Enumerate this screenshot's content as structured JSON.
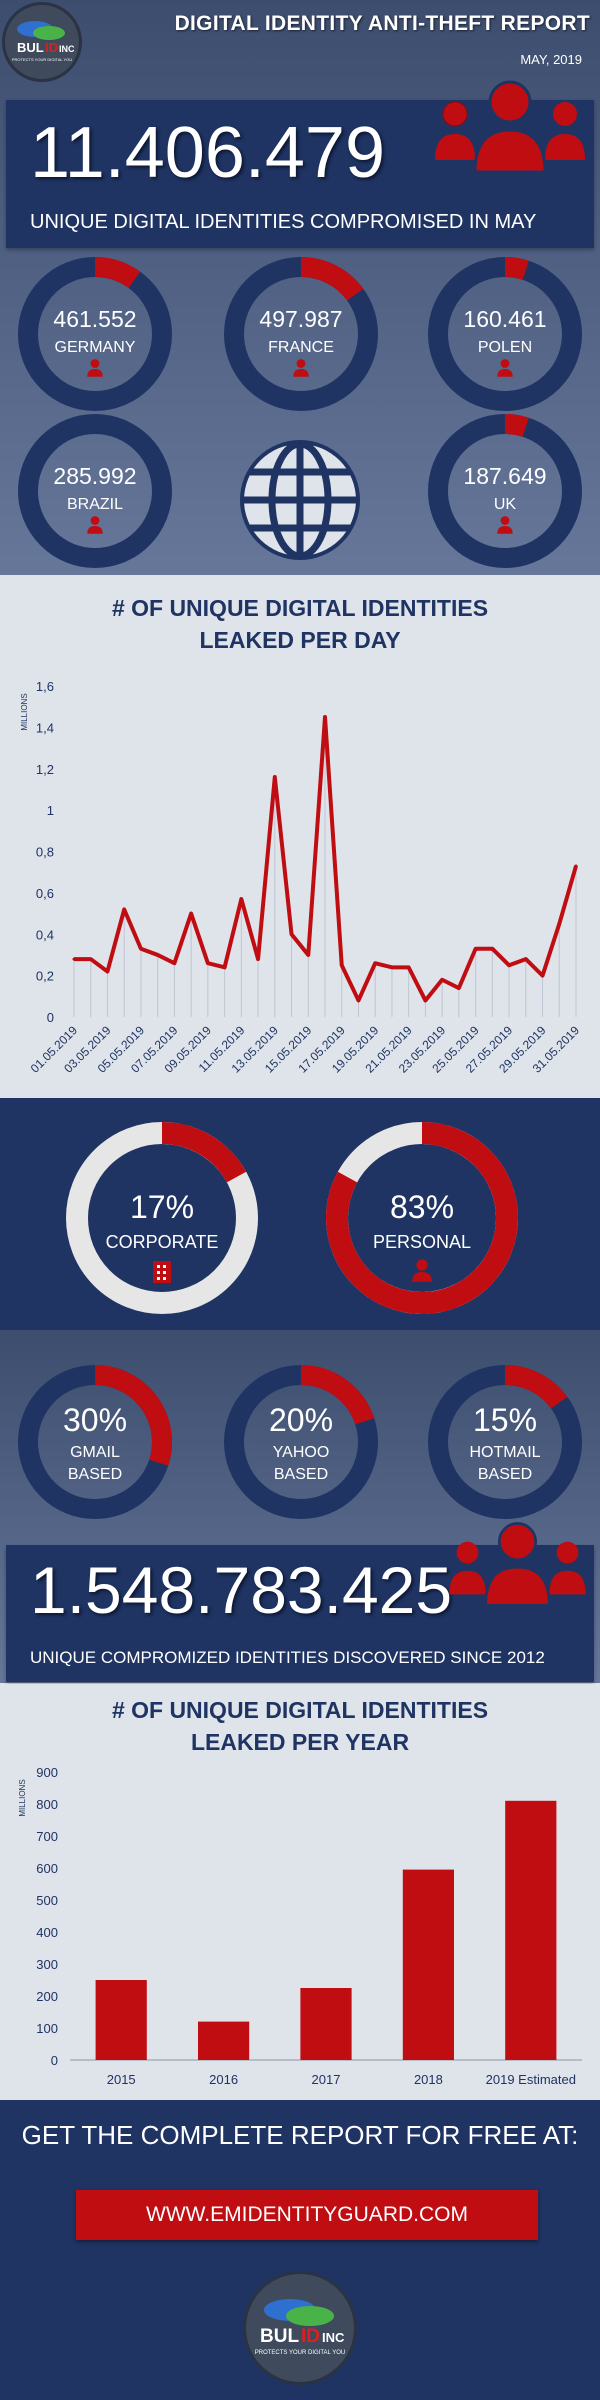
{
  "colors": {
    "navy": "#1f3463",
    "red": "#c00d12",
    "light": "#dfe3ea",
    "gray": "#e6e6e6"
  },
  "header": {
    "title": "DIGITAL IDENTITY ANTI-THEFT REPORT",
    "date": "MAY, 2019",
    "logo": {
      "text_bul": "BUL",
      "text_id": "ID",
      "text_inc": "INC",
      "tagline": "PROTECTS YOUR DIGITAL YOU"
    }
  },
  "summary_may": {
    "number": "11.406.479",
    "caption": "UNIQUE DIGITAL IDENTITIES COMPROMISED IN MAY",
    "icon": "people-icon"
  },
  "countries": [
    {
      "value": "461.552",
      "name": "GERMANY",
      "fraction": 0.1
    },
    {
      "value": "497.987",
      "name": "FRANCE",
      "fraction": 0.15
    },
    {
      "value": "160.461",
      "name": "POLEN",
      "fraction": 0.05
    },
    {
      "value": "285.992",
      "name": "BRAZIL",
      "fraction": 0.0
    },
    {
      "value": "187.649",
      "name": "UK",
      "fraction": 0.05
    }
  ],
  "globe_icon": "globe-icon",
  "chart_data": [
    {
      "type": "line",
      "title": "# OF UNIQUE DIGITAL IDENTITIES LEAKED PER DAY",
      "title_lines": [
        "# OF UNIQUE DIGITAL IDENTITIES",
        "LEAKED PER DAY"
      ],
      "ylabel": "MILLIONS",
      "ylim": [
        0,
        1.6
      ],
      "yticks": [
        "0",
        "0,2",
        "0,4",
        "0,6",
        "0,8",
        "1",
        "1,2",
        "1,4",
        "1,6"
      ],
      "x": [
        "01.05.2019",
        "02.05.2019",
        "03.05.2019",
        "04.05.2019",
        "05.05.2019",
        "06.05.2019",
        "07.05.2019",
        "08.05.2019",
        "09.05.2019",
        "10.05.2019",
        "11.05.2019",
        "12.05.2019",
        "13.05.2019",
        "14.05.2019",
        "15.05.2019",
        "16.05.2019",
        "17.05.2019",
        "18.05.2019",
        "19.05.2019",
        "20.05.2019",
        "21.05.2019",
        "22.05.2019",
        "23.05.2019",
        "24.05.2019",
        "25.05.2019",
        "26.05.2019",
        "27.05.2019",
        "28.05.2019",
        "29.05.2019",
        "30.05.2019",
        "31.05.2019"
      ],
      "xtick_labels": [
        "01.05.2019",
        "03.05.2019",
        "05.05.2019",
        "07.05.2019",
        "09.05.2019",
        "11.05.2019",
        "13.05.2019",
        "15.05.2019",
        "17.05.2019",
        "19.05.2019",
        "21.05.2019",
        "23.05.2019",
        "25.05.2019",
        "27.05.2019",
        "29.05.2019",
        "31.05.2019"
      ],
      "values": [
        0.28,
        0.28,
        0.22,
        0.52,
        0.33,
        0.3,
        0.26,
        0.5,
        0.26,
        0.24,
        0.57,
        0.28,
        1.16,
        0.4,
        0.3,
        1.45,
        0.25,
        0.08,
        0.26,
        0.24,
        0.24,
        0.08,
        0.18,
        0.14,
        0.33,
        0.33,
        0.25,
        0.28,
        0.2,
        0.45,
        0.73
      ],
      "grid": "vertical",
      "legend": "none"
    },
    {
      "type": "bar",
      "title": "# OF UNIQUE DIGITAL IDENTITIES LEAKED PER YEAR",
      "title_lines": [
        "# OF UNIQUE DIGITAL IDENTITIES",
        "LEAKED PER YEAR"
      ],
      "ylabel": "MILLIONS",
      "ylim": [
        0,
        900
      ],
      "yticks": [
        "0",
        "100",
        "200",
        "300",
        "400",
        "500",
        "600",
        "700",
        "800",
        "900"
      ],
      "categories": [
        "2015",
        "2016",
        "2017",
        "2018",
        "2019 Estimated"
      ],
      "values": [
        250,
        120,
        225,
        595,
        810
      ],
      "legend": "none"
    }
  ],
  "account_type": [
    {
      "pct": "17%",
      "label": "CORPORATE",
      "fraction": 0.17,
      "icon": "building-icon"
    },
    {
      "pct": "83%",
      "label": "PERSONAL",
      "fraction": 0.83,
      "icon": "person-icon"
    }
  ],
  "email_providers": [
    {
      "pct": "30%",
      "label1": "GMAIL",
      "label2": "BASED",
      "fraction": 0.3
    },
    {
      "pct": "20%",
      "label1": "YAHOO",
      "label2": "BASED",
      "fraction": 0.2
    },
    {
      "pct": "15%",
      "label1": "HOTMAIL",
      "label2": "BASED",
      "fraction": 0.15
    }
  ],
  "summary_total": {
    "number": "1.548.783.425",
    "caption": "UNIQUE COMPROMIZED IDENTITIES DISCOVERED SINCE 2012",
    "icon": "people-icon"
  },
  "cta": {
    "text": "GET THE COMPLETE REPORT FOR FREE AT:",
    "button": "WWW.EMIDENTITYGUARD.COM"
  }
}
